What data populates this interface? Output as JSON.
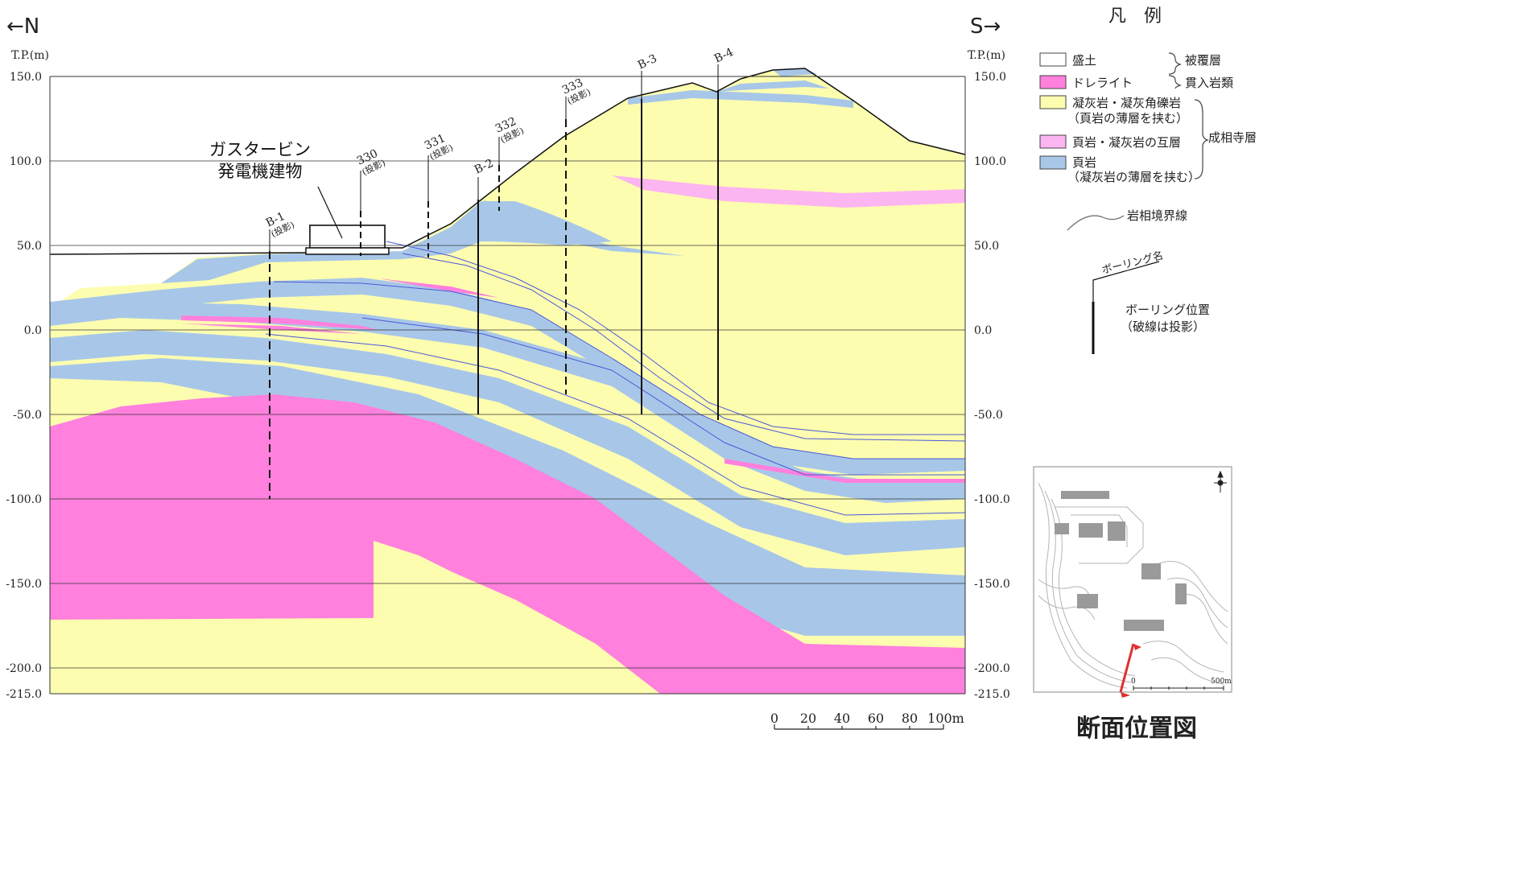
{
  "north_label": "←N",
  "south_label": "S→",
  "axis": {
    "unit_left": "T.P.(m)",
    "unit_right": "T.P.(m)",
    "ticks": [
      "150.0",
      "100.0",
      "50.0",
      "0.0",
      "-50.0",
      "-100.0",
      "-150.0",
      "-200.0",
      "-215.0"
    ]
  },
  "building_label": [
    "ガスタービン",
    "発電機建物"
  ],
  "boreholes": {
    "b1": {
      "name": "B-1",
      "note": "(投影)"
    },
    "b330": {
      "name": "330",
      "note": "(投影)"
    },
    "b331": {
      "name": "331",
      "note": "(投影)"
    },
    "b332": {
      "name": "332",
      "note": "(投影)"
    },
    "b333": {
      "name": "333",
      "note": "(投影)"
    },
    "b2": {
      "name": "B-2"
    },
    "b3": {
      "name": "B-3"
    },
    "b4": {
      "name": "B-4"
    }
  },
  "scale": {
    "labels": [
      "0",
      "20",
      "40",
      "60",
      "80",
      "100m"
    ]
  },
  "legend": {
    "title": "凡　例",
    "items": [
      {
        "label": "盛土",
        "color": "#ffffff"
      },
      {
        "label": "ドレライト",
        "color": "#ff80dd"
      },
      {
        "label": "凝灰岩・凝灰角礫岩",
        "sub": "（頁岩の薄層を挟む）",
        "color": "#fdfdb0"
      },
      {
        "label": "頁岩・凝灰岩の互層",
        "color": "#fbb5f0"
      },
      {
        "label": "頁岩",
        "sub": "（凝灰岩の薄層を挟む）",
        "color": "#a8c7e8"
      }
    ],
    "group_cover": "被覆層",
    "group_intrusive": "貫入岩類",
    "group_formation": "成相寺層",
    "boundary_label": "岩相境界線",
    "boring_name_label": "ボーリング名",
    "boring_pos_label": "ボーリング位置",
    "boring_pos_sub": "（破線は投影）"
  },
  "location_map": {
    "title": "断面位置図",
    "scale_start": "0",
    "scale_end": "500m"
  }
}
